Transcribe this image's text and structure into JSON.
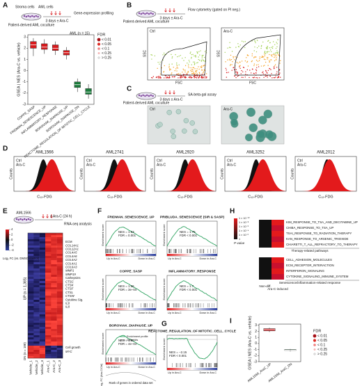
{
  "panel_a": {
    "label": "A",
    "schematic": {
      "stroma": "Stroma cells",
      "aml": "AML cells",
      "coculture": "Patient-derived AML coculture",
      "treatment": "3 days ± Ara-C",
      "readout": "Gene-expression profiling"
    },
    "cohort": "AML (n = 15)",
    "fdr_title": "FDR",
    "fdr_levels": [
      "< 0.01",
      "< 0.05",
      "< 0.1",
      "< 0.25",
      "> 0.25"
    ],
    "fdr_colors": [
      "#a50f15",
      "#de2d26",
      "#f08080",
      "#f4b6b6",
      "#ffffff"
    ],
    "chart": {
      "type": "box",
      "ylabel": "GSEA | NES (Ara-C vs. vehicle)",
      "ylim": [
        -3,
        3.2
      ],
      "yticks": [
        -3,
        -2,
        -1,
        0,
        1,
        2,
        3
      ],
      "categories": [
        "COPPE_SASP",
        "FRIDMAN_SENESCENCE_UP",
        "INFLAMMATORY_RESPONSE",
        "BOROVIAK_DIAPAUSE_UP",
        "BOROVIAK_DIAPAUSE_DN",
        "REACTOME_REGULATION_OF MITOTIC_CELL_CYCLE"
      ],
      "colors": [
        "#d7191c",
        "#d7191c",
        "#d7191c",
        "#d7191c",
        "#1a7a3a",
        "#1a7a3a"
      ],
      "boxes": [
        {
          "low": 1.3,
          "q1": 2.0,
          "median": 2.3,
          "q3": 2.6,
          "high": 2.9
        },
        {
          "low": 1.5,
          "q1": 1.9,
          "median": 2.1,
          "q3": 2.4,
          "high": 2.8
        },
        {
          "low": 1.4,
          "q1": 1.8,
          "median": 2.0,
          "q3": 2.3,
          "high": 2.6
        },
        {
          "low": 1.0,
          "q1": 1.4,
          "median": 1.6,
          "q3": 1.8,
          "high": 2.1
        },
        {
          "low": -1.9,
          "q1": -1.5,
          "median": -1.25,
          "q3": -1.0,
          "high": -0.7
        },
        {
          "low": -2.5,
          "q1": -2.1,
          "median": -1.9,
          "q3": -1.6,
          "high": -1.2
        }
      ]
    }
  },
  "panel_b": {
    "label": "B",
    "coculture": "Patient-derived AML coculture",
    "treatment": "3 days ± Ara-C",
    "readout": "Flow cytometry (gated on PI neg.)",
    "conditions": [
      "Ctrl",
      "Ara-C"
    ],
    "xlabel": "FSC",
    "ylabel": "SSC"
  },
  "panel_c": {
    "label": "C",
    "coculture": "Patient-derived AML coculture",
    "treatment": "3 days ± Ara-C",
    "readout": "SA-beta-gal assay",
    "conditions": [
      "Ctrl",
      "Ara-C"
    ]
  },
  "panel_d": {
    "label": "D",
    "samples": [
      "AML1566",
      "AML2741",
      "AML2920",
      "AML3252",
      "AML2012"
    ],
    "conditions": [
      "Ctrl",
      "Ara-C"
    ],
    "xlabel": "C₁₂-FDG",
    "ylabel": "Counts"
  },
  "panel_e": {
    "label": "E",
    "sample": "AML1566",
    "treatment": "± Ara-C (24 h)",
    "readout": "RNA-seq analysis",
    "scale_title": "Log₂ FC (vs. DMSO control)",
    "scale_lim": [
      -4,
      4
    ],
    "scale_ticks": [
      4,
      2,
      0,
      -2,
      -4
    ],
    "up": "UP (n = 1,365)",
    "dn": "DN (n = 188)",
    "columns": [
      "Vehicle_1",
      "Vehicle_2",
      "Vehicle_3",
      "Ara-C_1",
      "Ara-C_2",
      "Ara-C_3"
    ],
    "genes": [
      "ECM",
      "COL14A1",
      "COL12A1",
      "COL4A5",
      "COL4A6",
      "COL4A2",
      "COL4A1",
      "COL6A3",
      "MMP1",
      "MMP19",
      "Cathepsins",
      "CTSC",
      "CTSK",
      "CTSF",
      "CTSL",
      "CTSW",
      "Cytokine Sig.",
      "IL6",
      "IL8"
    ],
    "dn_genes": [
      "Cell growth",
      "MYC"
    ]
  },
  "panel_f": {
    "label": "F",
    "plots": [
      {
        "title": "FRIDMAN_SENESCENCE_UP",
        "nes": "NES = 1.63",
        "fdr": "FDR = 0.001"
      },
      {
        "title": "PRIBLUDA_SENESCENCE (SIR & SASP)",
        "nes": "NES = 1.75",
        "fdr": "FDR < 0.001"
      },
      {
        "title": "COPPE_SASP",
        "nes": "NES = 1.56",
        "fdr": "FDR = 3e–04"
      },
      {
        "title": "INFLAMMATORY_RESPONSE",
        "nes": "NES = 1.7",
        "fdr": "FDR < 0.001"
      },
      {
        "title": "BOROVIAK_DIAPAUSE_UP",
        "nes": "NES = 1.60",
        "fdr": "FDR = 4e–04"
      }
    ],
    "ylabel": "Enrichment score",
    "up": "Up in Ara-C",
    "down": "Down in Ara-C",
    "profile": "Enrichment profile",
    "hits": "Gene hits",
    "fc_label": "Log₂ FC (Ara-C/Ctrl)",
    "rank_label": "Rank of genes in ordered data set"
  },
  "panel_g": {
    "label": "G",
    "title": "REACTOME_REGULATION_OF MITOTIC_CELL_CYCLE",
    "nes": "NES = −2.15",
    "fdr": "FDR < 0.001"
  },
  "panel_h": {
    "label": "H",
    "scale_labels": [
      "1 × 10⁻¹⁰",
      "1 × 10⁻⁸",
      "1 × 10⁻⁶",
      "1 × 10⁻⁴",
      "1 × 10⁻²",
      "1"
    ],
    "scale_title": "P-value",
    "therapy_rows": [
      "KIM_RESPONSE_TO_TSA_AND_DECITABINE_UP",
      "CHIBA_RESPONSE_TO_TSA_UP",
      "TSAI_RESPONSE_TO_RADIATION_THERAPY",
      "KAN_RESPONSE_TO_ARSENIC_TRIOXIDE",
      "CHIARETTI_T_ALL_REFRACTORY_TO_THERAPY"
    ],
    "therapy_title": "Therapy-related pathways",
    "senescence_rows": [
      "CELL_ADHESION_MOLECULES",
      "ECM_RECEPTOR_INTERACTION",
      "INTERFERON_SIGNALING",
      "CYTOKINE_SIGNALING_IMMUNE_SYSTEM"
    ],
    "senescence_title": "Senescence/inflammation-related response",
    "columns": [
      "Non-diff.",
      "Ara-C-induced"
    ]
  },
  "panel_i": {
    "label": "I",
    "fdr_title": "FDR",
    "fdr_levels": [
      "< 0.01",
      "< 0.05",
      "< 0.1",
      "< 0.25",
      "> 0.25"
    ],
    "chart": {
      "type": "box",
      "ylabel": "GSEA | NES (Ara-C vs. vehicle)",
      "ylim": [
        -3,
        3.2
      ],
      "yticks": [
        -3,
        -2,
        -1,
        0,
        1,
        2,
        3
      ],
      "categories": [
        "AML1566_AraC_UP",
        "AML1566_AraC_DN"
      ],
      "colors": [
        "#d7191c",
        "#1a7a3a"
      ],
      "boxes": [
        {
          "low": 1.9,
          "q1": 2.1,
          "median": 2.3,
          "q3": 2.45,
          "high": 2.6
        },
        {
          "low": -1.3,
          "q1": -1.15,
          "median": -1.1,
          "q3": -1.0,
          "high": -0.9
        }
      ]
    }
  }
}
